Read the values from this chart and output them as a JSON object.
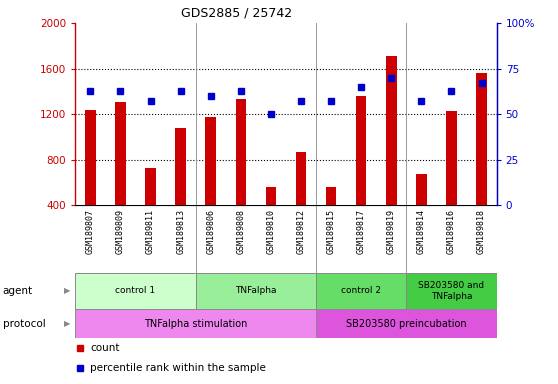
{
  "title": "GDS2885 / 25742",
  "samples": [
    "GSM189807",
    "GSM189809",
    "GSM189811",
    "GSM189813",
    "GSM189806",
    "GSM189808",
    "GSM189810",
    "GSM189812",
    "GSM189815",
    "GSM189817",
    "GSM189819",
    "GSM189814",
    "GSM189816",
    "GSM189818"
  ],
  "counts": [
    1240,
    1310,
    730,
    1080,
    1180,
    1330,
    560,
    870,
    560,
    1360,
    1710,
    680,
    1230,
    1560
  ],
  "percentiles": [
    63,
    63,
    57,
    63,
    60,
    63,
    50,
    57,
    57,
    65,
    70,
    57,
    63,
    67
  ],
  "ylim_left": [
    400,
    2000
  ],
  "ylim_right": [
    0,
    100
  ],
  "yticks_left": [
    400,
    800,
    1200,
    1600,
    2000
  ],
  "yticks_right": [
    0,
    25,
    50,
    75,
    100
  ],
  "bar_color": "#cc0000",
  "dot_color": "#0000cc",
  "agent_groups": [
    {
      "label": "control 1",
      "start": 0,
      "end": 4,
      "color": "#ccffcc"
    },
    {
      "label": "TNFalpha",
      "start": 4,
      "end": 8,
      "color": "#99ee99"
    },
    {
      "label": "control 2",
      "start": 8,
      "end": 11,
      "color": "#66dd66"
    },
    {
      "label": "SB203580 and\nTNFalpha",
      "start": 11,
      "end": 14,
      "color": "#44cc44"
    }
  ],
  "protocol_groups": [
    {
      "label": "TNFalpha stimulation",
      "start": 0,
      "end": 8,
      "color": "#ee88ee"
    },
    {
      "label": "SB203580 preincubation",
      "start": 8,
      "end": 14,
      "color": "#dd55dd"
    }
  ],
  "legend_count_label": "count",
  "legend_pct_label": "percentile rank within the sample",
  "agent_label": "agent",
  "protocol_label": "protocol",
  "grid_color": "#555555",
  "background_color": "#ffffff",
  "xticklabel_bg": "#cccccc",
  "grid_yticks": [
    800,
    1200,
    1600
  ],
  "bar_width": 0.35
}
